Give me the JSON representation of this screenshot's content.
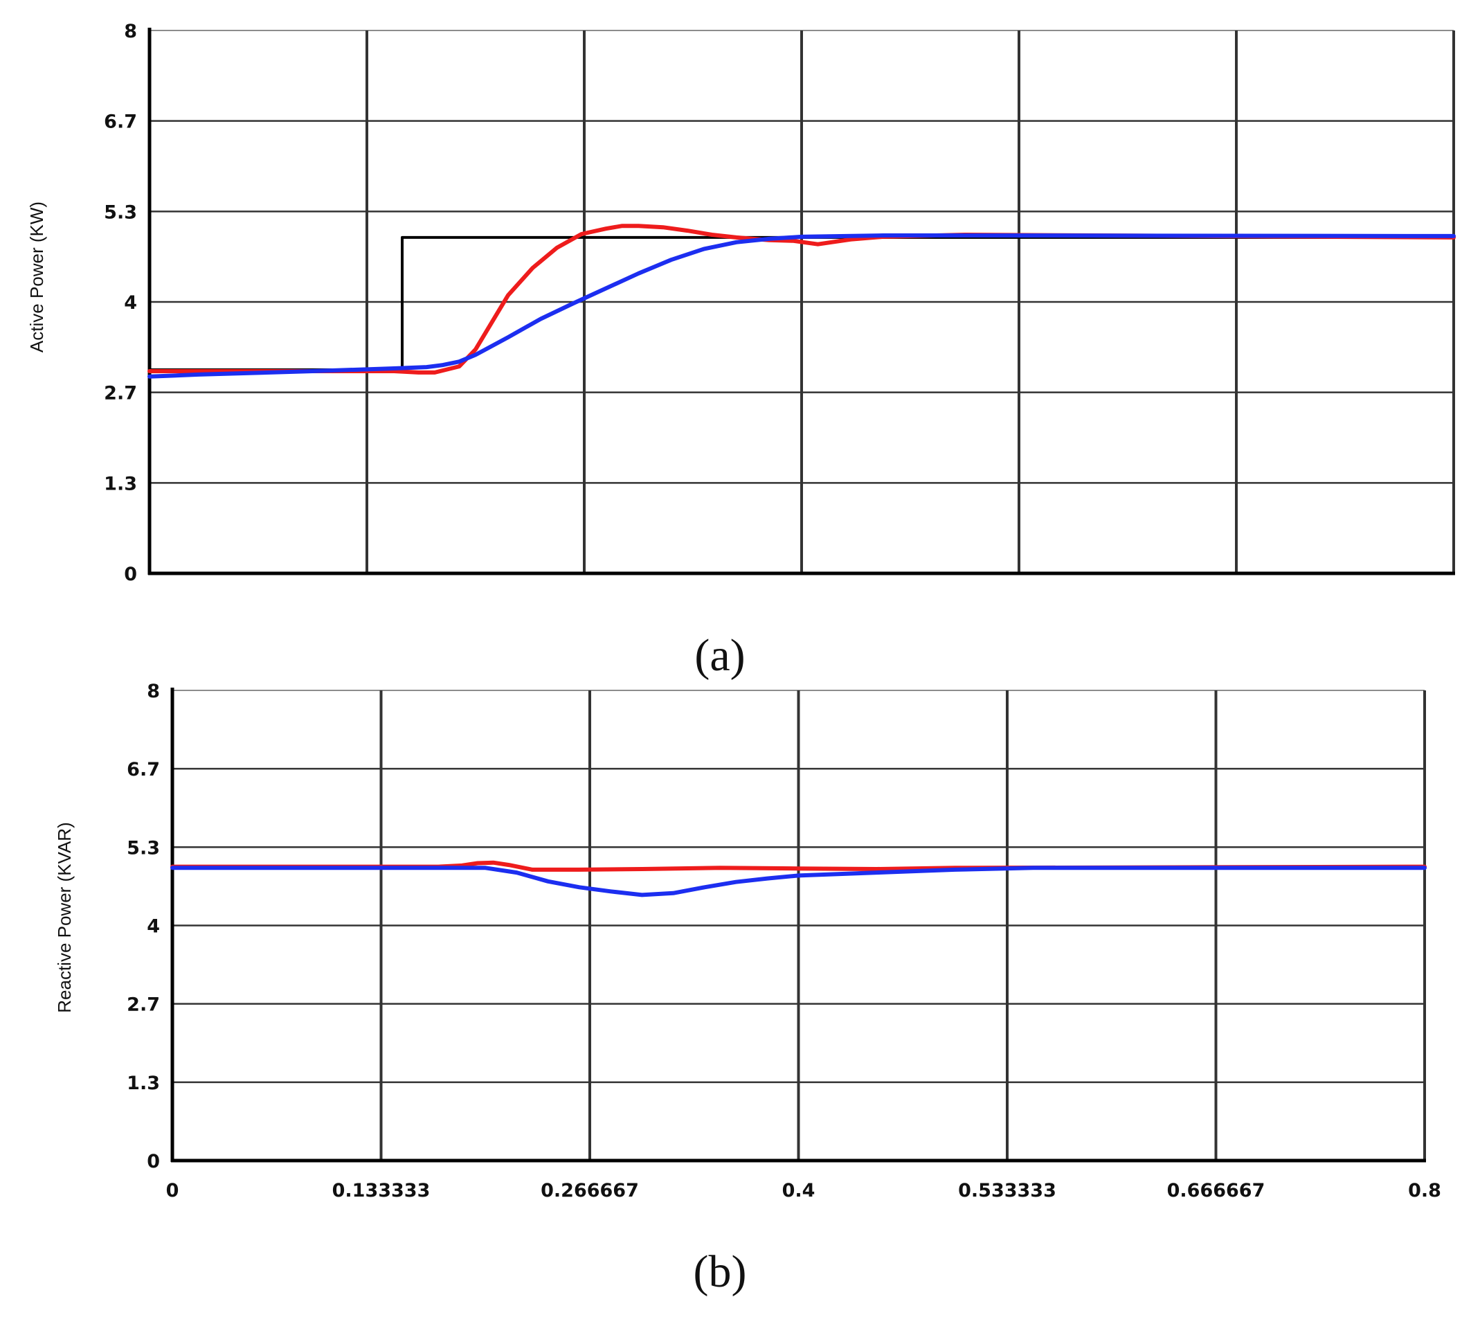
{
  "chart_data": [
    {
      "type": "line",
      "panel_label": "(a)",
      "ylabel": "Active Power (KW)",
      "xlim": [
        0,
        0.8
      ],
      "ylim": [
        0,
        8
      ],
      "yticks": [
        "0",
        "1.3",
        "2.7",
        "4",
        "5.3",
        "6.7",
        "8"
      ],
      "xticks": [],
      "grid": true,
      "series": [
        {
          "color": "#000000",
          "x": [
            0,
            0.155,
            0.155,
            0.8
          ],
          "y": [
            3.0,
            3.0,
            4.95,
            4.95
          ]
        },
        {
          "color": "#ee1c1c",
          "x": [
            0,
            0.1,
            0.15,
            0.165,
            0.175,
            0.19,
            0.2,
            0.21,
            0.22,
            0.235,
            0.25,
            0.265,
            0.28,
            0.29,
            0.3,
            0.315,
            0.33,
            0.345,
            0.36,
            0.38,
            0.395,
            0.41,
            0.43,
            0.45,
            0.5,
            0.8
          ],
          "y": [
            2.98,
            2.98,
            2.98,
            2.96,
            2.96,
            3.05,
            3.3,
            3.7,
            4.1,
            4.5,
            4.8,
            5.0,
            5.08,
            5.12,
            5.12,
            5.1,
            5.05,
            4.99,
            4.95,
            4.91,
            4.9,
            4.85,
            4.92,
            4.96,
            4.99,
            4.95
          ]
        },
        {
          "color": "#1c2ef0",
          "x": [
            0,
            0.03,
            0.1,
            0.15,
            0.17,
            0.18,
            0.19,
            0.2,
            0.22,
            0.24,
            0.26,
            0.28,
            0.3,
            0.32,
            0.34,
            0.36,
            0.38,
            0.4,
            0.45,
            0.5,
            0.8
          ],
          "y": [
            2.9,
            2.93,
            2.98,
            3.02,
            3.04,
            3.07,
            3.12,
            3.22,
            3.48,
            3.75,
            3.98,
            4.2,
            4.42,
            4.62,
            4.78,
            4.88,
            4.93,
            4.96,
            4.98,
            4.98,
            4.97
          ]
        }
      ]
    },
    {
      "type": "line",
      "panel_label": "(b)",
      "ylabel": "Reactive Power (KVAR)",
      "xlim": [
        0,
        0.8
      ],
      "ylim": [
        0,
        8
      ],
      "yticks": [
        "0",
        "1.3",
        "2.7",
        "4",
        "5.3",
        "6.7",
        "8"
      ],
      "xticks": [
        "0",
        "0.133333",
        "0.266667",
        "0.4",
        "0.533333",
        "0.666667",
        "0.8"
      ],
      "grid": true,
      "series": [
        {
          "color": "#ee1c1c",
          "x": [
            0,
            0.17,
            0.185,
            0.195,
            0.205,
            0.215,
            0.23,
            0.26,
            0.3,
            0.35,
            0.4,
            0.45,
            0.5,
            0.8
          ],
          "y": [
            5.0,
            5.0,
            5.02,
            5.06,
            5.07,
            5.03,
            4.95,
            4.95,
            4.96,
            4.98,
            4.97,
            4.96,
            4.98,
            5.0
          ]
        },
        {
          "color": "#1c2ef0",
          "x": [
            0,
            0.2,
            0.22,
            0.24,
            0.26,
            0.28,
            0.3,
            0.32,
            0.34,
            0.36,
            0.38,
            0.4,
            0.45,
            0.5,
            0.55,
            0.8
          ],
          "y": [
            4.98,
            4.98,
            4.9,
            4.75,
            4.65,
            4.58,
            4.52,
            4.55,
            4.65,
            4.74,
            4.8,
            4.85,
            4.9,
            4.95,
            4.98,
            4.98
          ]
        }
      ]
    }
  ]
}
